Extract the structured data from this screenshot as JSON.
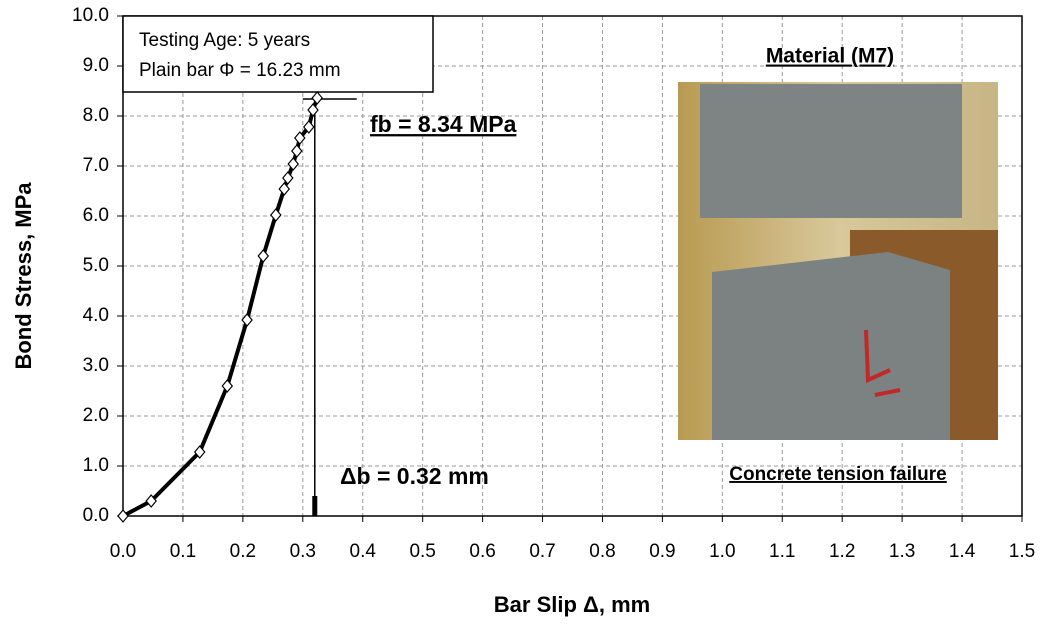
{
  "chart_data": {
    "type": "line",
    "xlabel": "Bar Slip Δ, mm",
    "ylabel": "Bond Stress, MPa",
    "xlim": [
      0,
      1.5
    ],
    "ylim": [
      0,
      10
    ],
    "xticks": [
      {
        "value": 0,
        "label": "0.0"
      },
      {
        "value": 0.1,
        "label": "0.1"
      },
      {
        "value": 0.2,
        "label": "0.2"
      },
      {
        "value": 0.3,
        "label": "0.3"
      },
      {
        "value": 0.4,
        "label": "0.4"
      },
      {
        "value": 0.5,
        "label": "0.5"
      },
      {
        "value": 0.6,
        "label": "0.6"
      },
      {
        "value": 0.7,
        "label": "0.7"
      },
      {
        "value": 0.8,
        "label": "0.8"
      },
      {
        "value": 0.9,
        "label": "0.9"
      },
      {
        "value": 1,
        "label": "1.0"
      },
      {
        "value": 1.1,
        "label": "1.1"
      },
      {
        "value": 1.2,
        "label": "1.2"
      },
      {
        "value": 1.3,
        "label": "1.3"
      },
      {
        "value": 1.4,
        "label": "1.4"
      },
      {
        "value": 1.5,
        "label": "1.5"
      }
    ],
    "yticks": [
      {
        "value": 0,
        "label": "0.0"
      },
      {
        "value": 1,
        "label": "1.0"
      },
      {
        "value": 2,
        "label": "2.0"
      },
      {
        "value": 3,
        "label": "3.0"
      },
      {
        "value": 4,
        "label": "4.0"
      },
      {
        "value": 5,
        "label": "5.0"
      },
      {
        "value": 6,
        "label": "6.0"
      },
      {
        "value": 7,
        "label": "7.0"
      },
      {
        "value": 8,
        "label": "8.0"
      },
      {
        "value": 9,
        "label": "9.0"
      },
      {
        "value": 10,
        "label": "10.0"
      }
    ],
    "grid": true,
    "series": [
      {
        "color": "#000000",
        "x": [
          0,
          0.047,
          0.128,
          0.174,
          0.207,
          0.234,
          0.255,
          0.269,
          0.275,
          0.284,
          0.29,
          0.295,
          0.31,
          0.317,
          0.324
        ],
        "values": [
          0,
          0.3,
          1.28,
          2.6,
          3.92,
          5.2,
          6.02,
          6.54,
          6.76,
          7.04,
          7.3,
          7.56,
          7.78,
          8.12,
          8.36
        ]
      }
    ],
    "info_box": [
      "Testing Age: 5 years",
      "Plain bar Φ = 16.23 mm"
    ],
    "peak": {
      "label": "fb = 8.34 MPa",
      "y": 8.34
    },
    "slip": {
      "label": "Δb = 0.32 mm",
      "x": 0.32
    },
    "photo": {
      "title": "Material (M7)",
      "caption": "Concrete tension failure"
    }
  }
}
